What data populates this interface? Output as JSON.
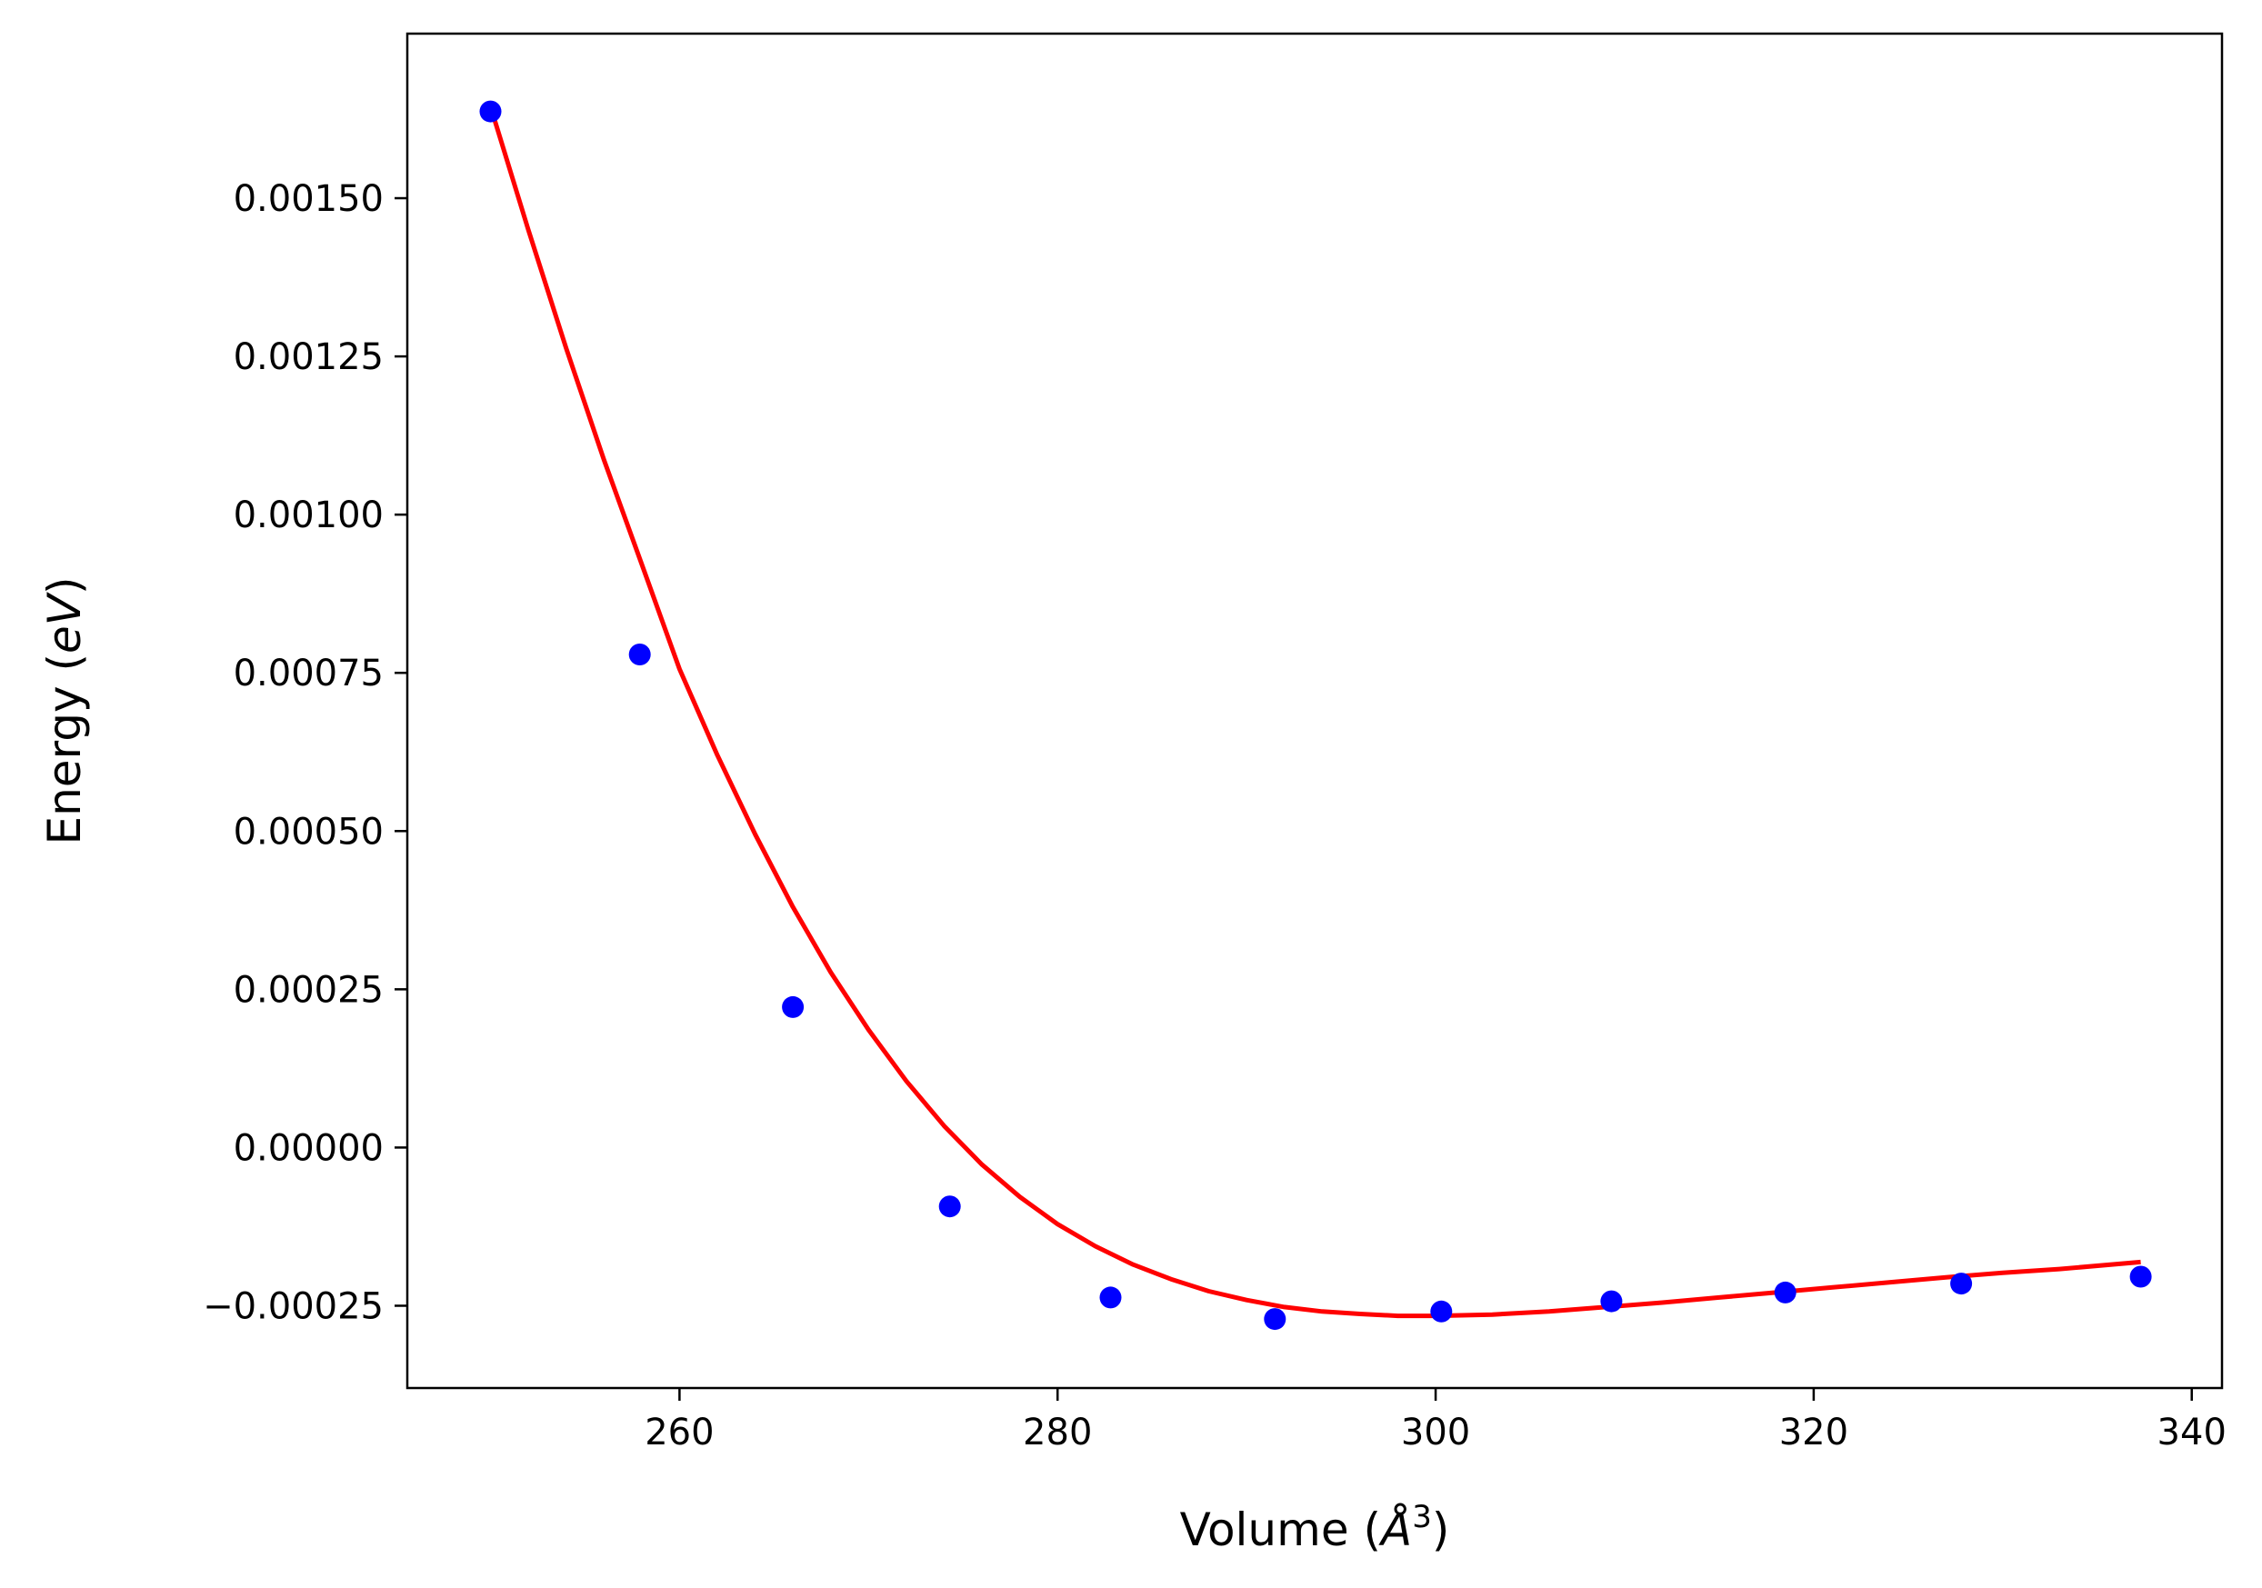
{
  "chart_data": {
    "type": "scatter",
    "title": "",
    "xlabel": "Volume",
    "xlabel_math": "Å",
    "xlabel_sup": "3",
    "ylabel": "Energy",
    "ylabel_math": "eV",
    "xlim": [
      245.6,
      341.6
    ],
    "ylim": [
      -0.00038,
      0.00176
    ],
    "xticks": [
      260,
      280,
      300,
      320,
      340
    ],
    "xtick_labels": [
      "260",
      "280",
      "300",
      "320",
      "340"
    ],
    "yticks": [
      -0.00025,
      0.0,
      0.00025,
      0.0005,
      0.00075,
      0.001,
      0.00125,
      0.0015
    ],
    "ytick_labels": [
      "−0.00025",
      "0.00000",
      "0.00025",
      "0.00050",
      "0.00075",
      "0.00100",
      "0.00125",
      "0.00150"
    ],
    "grid": false,
    "series": [
      {
        "kind": "points",
        "color": "#0000ff",
        "x": [
          250.0,
          257.9,
          266.0,
          274.3,
          282.8,
          291.5,
          300.3,
          309.3,
          318.5,
          327.8,
          337.3
        ],
        "y": [
          0.001637,
          0.000779,
          0.000222,
          -9.3e-05,
          -0.000237,
          -0.000271,
          -0.000259,
          -0.000243,
          -0.000229,
          -0.000215,
          -0.000204
        ]
      },
      {
        "kind": "fit-line",
        "color": "#ff0000",
        "x": [
          250.0,
          252.0,
          254.0,
          256.0,
          258.0,
          260.0,
          262.0,
          264.0,
          266.0,
          268.0,
          270.0,
          272.0,
          274.0,
          276.0,
          278.0,
          280.0,
          282.0,
          284.0,
          286.0,
          288.0,
          290.0,
          292.0,
          294.0,
          296.0,
          298.0,
          300.0,
          303.0,
          306.0,
          309.0,
          312.0,
          315.0,
          318.0,
          321.0,
          324.0,
          327.0,
          330.0,
          333.0,
          337.3
        ],
        "y": [
          0.001645,
          0.00145,
          0.001263,
          0.001087,
          0.000922,
          0.000756,
          0.00062,
          0.000495,
          0.00038,
          0.000277,
          0.000186,
          0.000105,
          3.4e-05,
          -2.7e-05,
          -7.8e-05,
          -0.000121,
          -0.000156,
          -0.000185,
          -0.000208,
          -0.000227,
          -0.000241,
          -0.000252,
          -0.000259,
          -0.000263,
          -0.000266,
          -0.000266,
          -0.000264,
          -0.000259,
          -0.000252,
          -0.000245,
          -0.000237,
          -0.000229,
          -0.000221,
          -0.000213,
          -0.000205,
          -0.000198,
          -0.000192,
          -0.000181
        ]
      }
    ]
  }
}
